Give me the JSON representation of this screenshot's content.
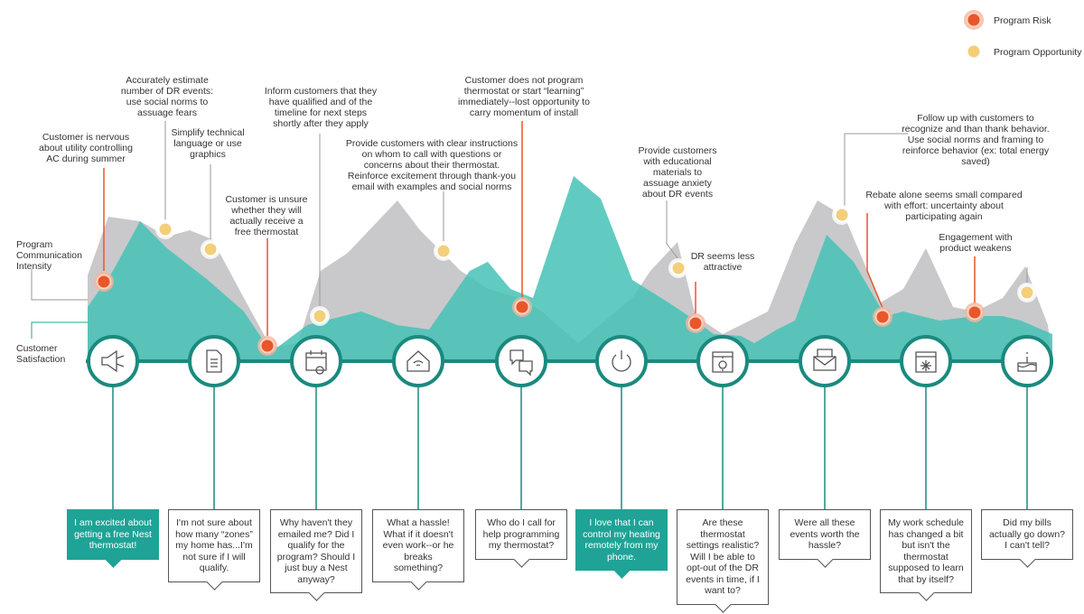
{
  "legend": [
    {
      "label": "Program Risk"
    },
    {
      "label": "Program Opportunity"
    }
  ],
  "axis_labels": {
    "communication": [
      "Program",
      "Communication",
      "Intensity"
    ],
    "satisfaction": [
      "Customer",
      "Satisfaction"
    ]
  },
  "annotations": [
    {
      "lines": [
        "Customer is nervous",
        "about utility controlling",
        "AC during summer"
      ]
    },
    {
      "lines": [
        "Accurately estimate",
        "number of DR events:",
        "use social norms to",
        "assuage fears"
      ]
    },
    {
      "lines": [
        "Simplify technical",
        "language or use",
        "graphics"
      ]
    },
    {
      "lines": [
        "Customer is unsure",
        "whether they will",
        "actually receive a",
        "free thermostat"
      ]
    },
    {
      "lines": [
        "Inform customers that they",
        "have qualified and of the",
        "timeline for next steps",
        "shortly after they apply"
      ]
    },
    {
      "lines": [
        "Provide customers with clear instructions",
        "on whom to call with questions or",
        "concerns about their thermostat.",
        "Reinforce excitement through thank-you",
        "email with examples and social norms"
      ]
    },
    {
      "lines": [
        "Customer does not program",
        "thermostat or start “learning”",
        "immediately--lost opportunity to",
        "carry momentum of install"
      ]
    },
    {
      "lines": [
        "Provide customers",
        "with educational",
        "materials to",
        "assuage anxiety",
        "about DR events"
      ]
    },
    {
      "lines": [
        "DR seems less",
        "attractive"
      ]
    },
    {
      "lines": [
        "Follow up with customers to",
        "recognize and than thank behavior.",
        "Use social norms and framing to",
        "reinforce behavior (ex: total energy",
        "saved)"
      ]
    },
    {
      "lines": [
        "Rebate alone seems small compared",
        "with effort: uncertainty about",
        "participating again"
      ]
    },
    {
      "lines": [
        "Engagement with",
        "product weakens"
      ]
    }
  ],
  "quotes": [
    "I am excited about getting a free Nest thermostat!",
    "I'm not sure about how many “zones” my home has...I'm not sure if I will qualify.",
    "Why haven't they emailed me? Did I qualify for the program? Should I just buy a Nest anyway?",
    "What a hassle! What if it doesn't even work--or he breaks something?",
    "Who do I call for help programming my thermostat?",
    "I love that I can control my heating remotely from my phone.",
    "Are these thermostat settings realistic? Will I be able to opt-out of the DR events in time, if I want to?",
    "Were all these events worth the hassle?",
    "My work schedule has changed a bit but isn't the thermostat supposed to learn that by itself?",
    "Did my bills actually go down? I can't tell?"
  ]
}
